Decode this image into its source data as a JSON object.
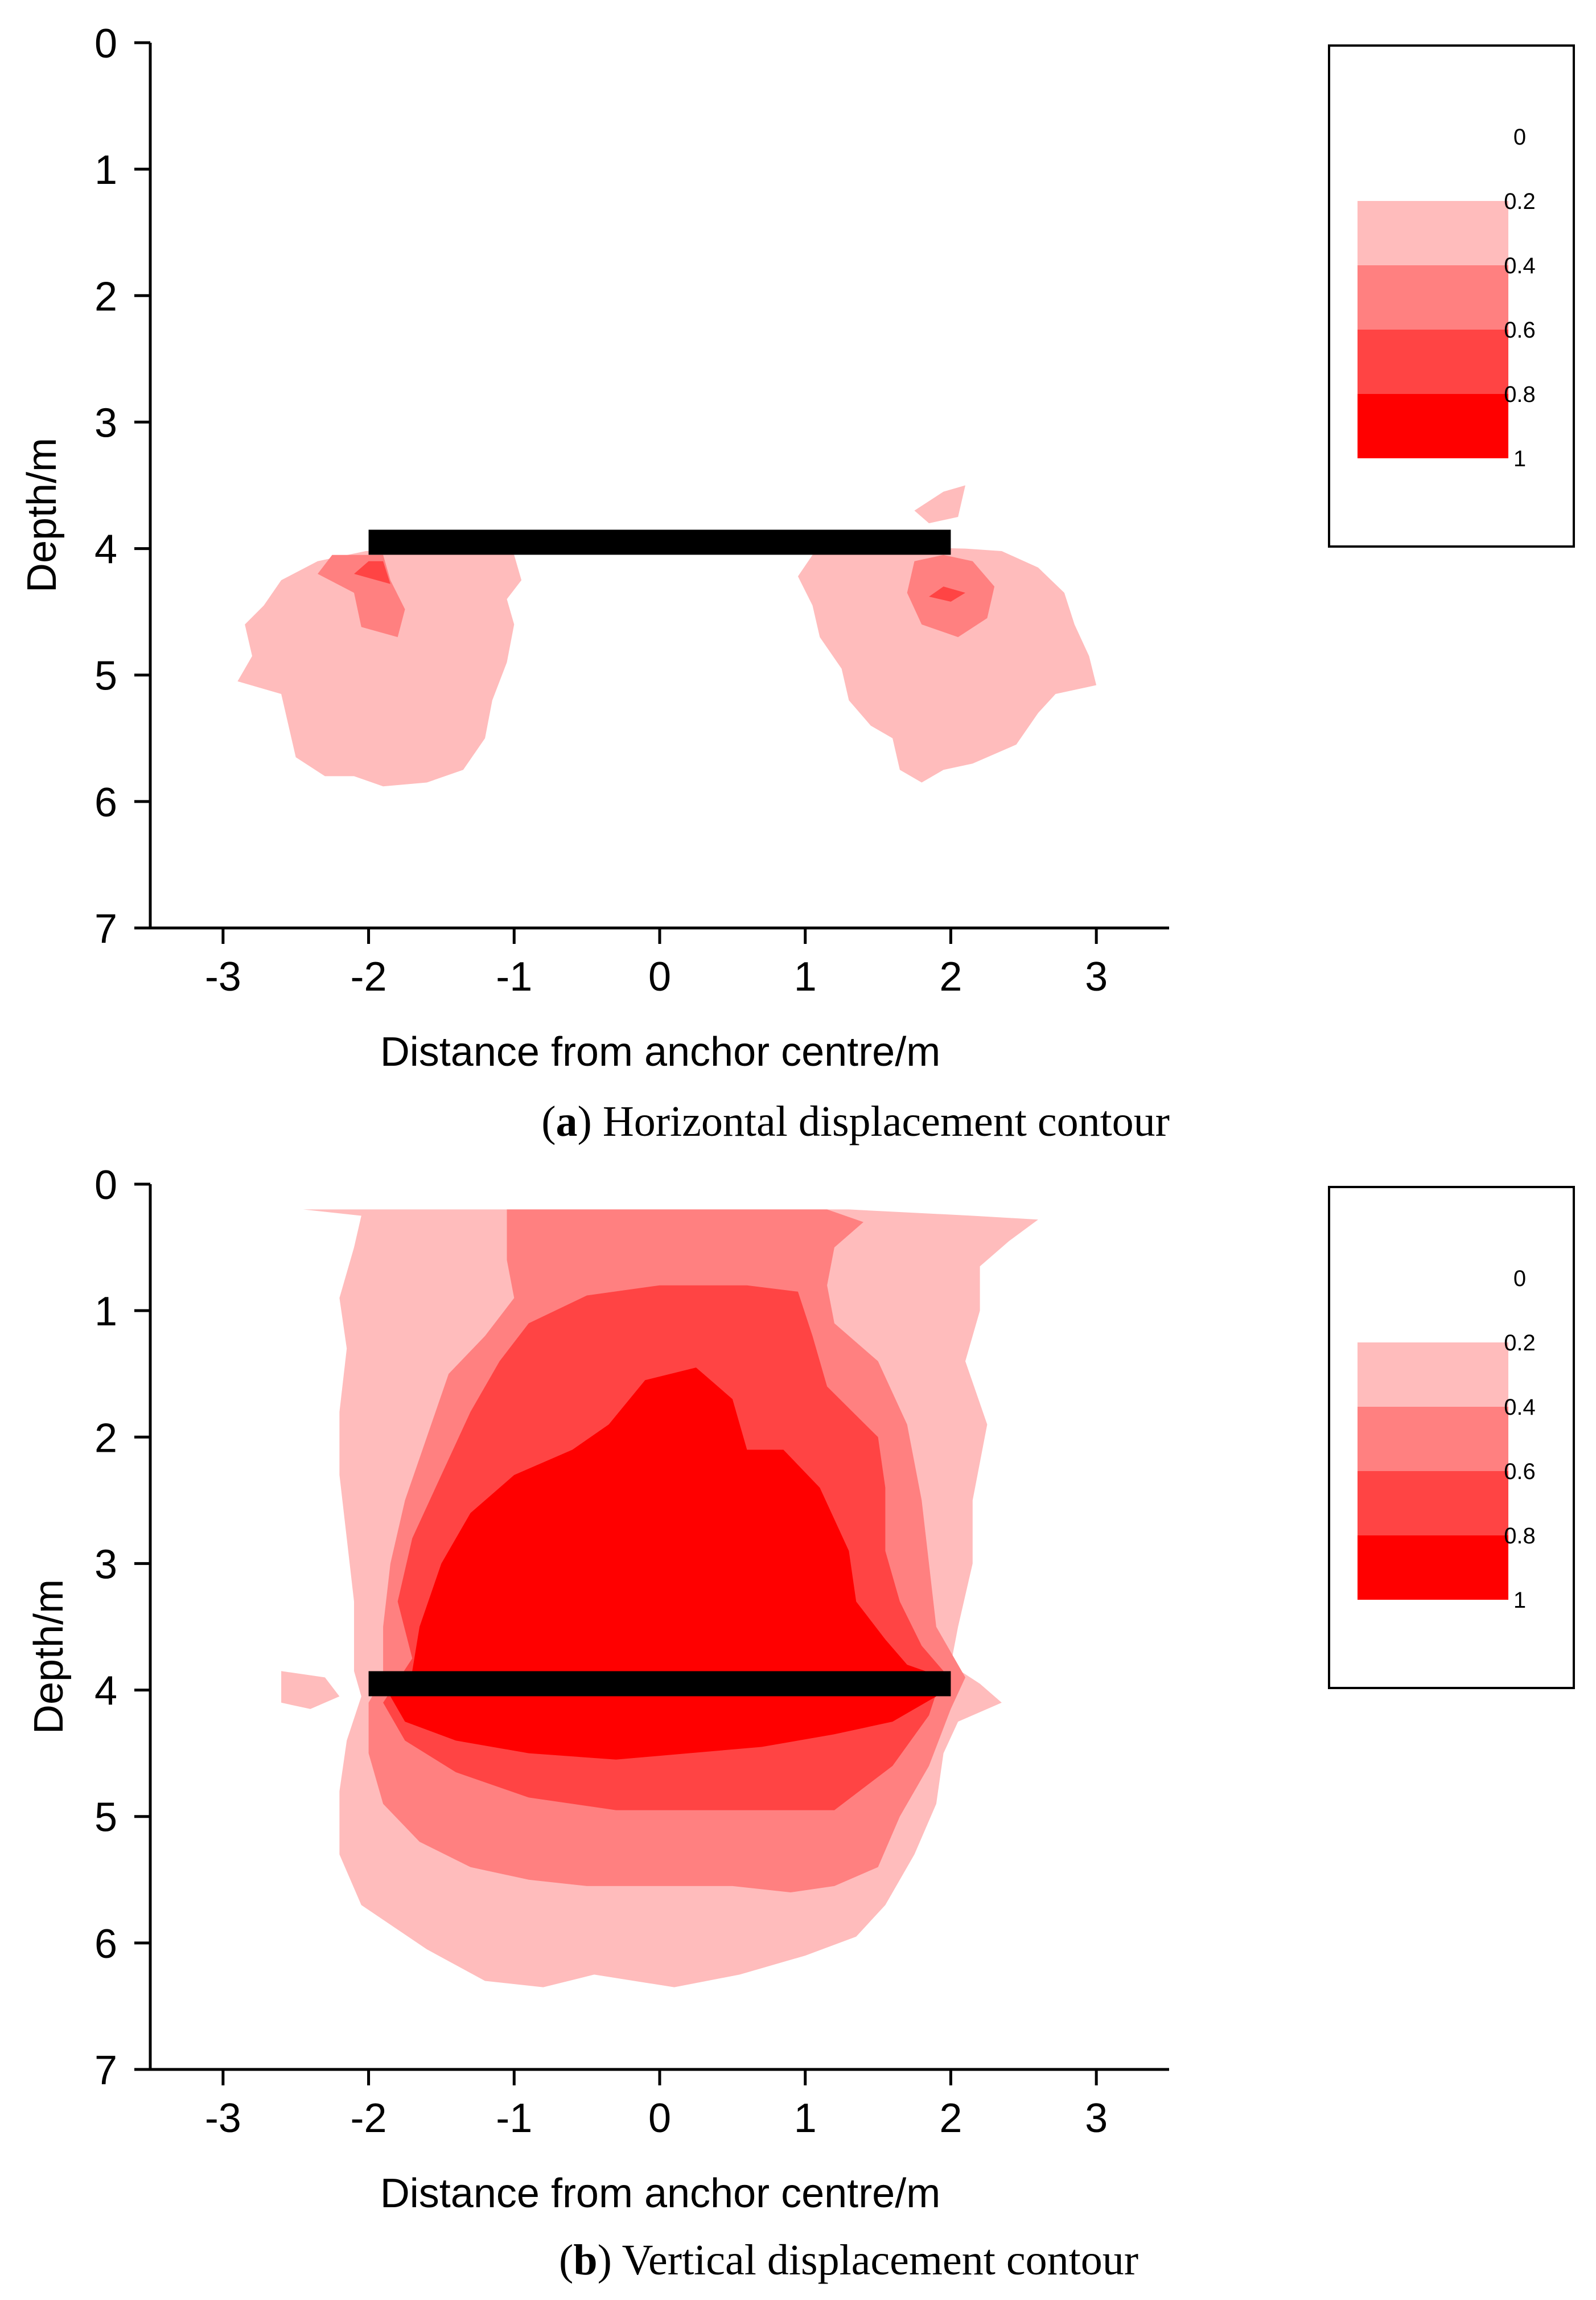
{
  "panels": [
    {
      "id": "a",
      "caption_letter": "a",
      "caption_text": "Horizontal displacement contour",
      "chart_data": {
        "type": "contour",
        "xlabel": "Distance from anchor centre/m",
        "ylabel": "Depth/m",
        "xlim": [
          -3.5,
          3.5
        ],
        "ylim": [
          7,
          0
        ],
        "x_ticks": [
          -3,
          -2,
          -1,
          0,
          1,
          2,
          3
        ],
        "y_ticks": [
          0,
          1,
          2,
          3,
          4,
          5,
          6,
          7
        ],
        "legend_levels": [
          "0",
          "0.2",
          "0.4",
          "0.6",
          "0.8",
          "1"
        ],
        "level_colors": [
          "#ffffff",
          "#ffbcbc",
          "#ff8080",
          "#ff4444",
          "#ff0000"
        ],
        "anchor": {
          "x_from": -2,
          "x_to": 2,
          "depth": 3.95
        },
        "regions": [
          {
            "level": 1,
            "points": [
              [
                -2.02,
                4.02
              ],
              [
                -2.35,
                4.1
              ],
              [
                -2.6,
                4.25
              ],
              [
                -2.72,
                4.45
              ],
              [
                -2.85,
                4.6
              ],
              [
                -2.8,
                4.85
              ],
              [
                -2.9,
                5.05
              ],
              [
                -2.6,
                5.15
              ],
              [
                -2.55,
                5.4
              ],
              [
                -2.5,
                5.65
              ],
              [
                -2.3,
                5.8
              ],
              [
                -2.1,
                5.8
              ],
              [
                -1.9,
                5.88
              ],
              [
                -1.6,
                5.85
              ],
              [
                -1.35,
                5.75
              ],
              [
                -1.2,
                5.5
              ],
              [
                -1.15,
                5.2
              ],
              [
                -1.05,
                4.9
              ],
              [
                -1.0,
                4.6
              ],
              [
                -1.05,
                4.4
              ],
              [
                -0.95,
                4.25
              ],
              [
                -1.0,
                4.05
              ],
              [
                -1.2,
                3.98
              ]
            ]
          },
          {
            "level": 1,
            "points": [
              [
                1.25,
                3.98
              ],
              [
                1.05,
                4.05
              ],
              [
                0.95,
                4.22
              ],
              [
                1.05,
                4.45
              ],
              [
                1.1,
                4.7
              ],
              [
                1.25,
                4.95
              ],
              [
                1.3,
                5.2
              ],
              [
                1.45,
                5.4
              ],
              [
                1.6,
                5.5
              ],
              [
                1.65,
                5.75
              ],
              [
                1.8,
                5.85
              ],
              [
                1.95,
                5.75
              ],
              [
                2.15,
                5.7
              ],
              [
                2.45,
                5.55
              ],
              [
                2.6,
                5.3
              ],
              [
                2.72,
                5.15
              ],
              [
                3.0,
                5.08
              ],
              [
                2.95,
                4.85
              ],
              [
                2.85,
                4.6
              ],
              [
                2.78,
                4.35
              ],
              [
                2.6,
                4.15
              ],
              [
                2.35,
                4.02
              ],
              [
                2.1,
                4.0
              ]
            ]
          },
          {
            "level": 1,
            "points": [
              [
                1.75,
                3.7
              ],
              [
                1.95,
                3.55
              ],
              [
                2.1,
                3.5
              ],
              [
                2.05,
                3.75
              ],
              [
                1.85,
                3.8
              ]
            ]
          },
          {
            "level": 2,
            "points": [
              [
                -2.25,
                4.05
              ],
              [
                -2.35,
                4.2
              ],
              [
                -2.1,
                4.35
              ],
              [
                -2.05,
                4.62
              ],
              [
                -1.8,
                4.7
              ],
              [
                -1.75,
                4.48
              ],
              [
                -1.85,
                4.25
              ],
              [
                -1.9,
                4.05
              ]
            ]
          },
          {
            "level": 2,
            "points": [
              [
                1.75,
                4.1
              ],
              [
                1.7,
                4.35
              ],
              [
                1.8,
                4.6
              ],
              [
                2.05,
                4.7
              ],
              [
                2.25,
                4.55
              ],
              [
                2.3,
                4.3
              ],
              [
                2.15,
                4.1
              ],
              [
                1.95,
                4.05
              ]
            ]
          },
          {
            "level": 3,
            "points": [
              [
                -2.0,
                4.1
              ],
              [
                -2.1,
                4.2
              ],
              [
                -1.85,
                4.28
              ],
              [
                -1.9,
                4.1
              ]
            ]
          },
          {
            "level": 3,
            "points": [
              [
                1.95,
                4.3
              ],
              [
                1.85,
                4.38
              ],
              [
                2.0,
                4.42
              ],
              [
                2.1,
                4.35
              ]
            ]
          }
        ]
      }
    },
    {
      "id": "b",
      "caption_letter": "b",
      "caption_text": "Vertical displacement contour",
      "chart_data": {
        "type": "contour",
        "xlabel": "Distance from anchor centre/m",
        "ylabel": "Depth/m",
        "xlim": [
          -3.5,
          3.5
        ],
        "ylim": [
          7,
          0
        ],
        "x_ticks": [
          -3,
          -2,
          -1,
          0,
          1,
          2,
          3
        ],
        "y_ticks": [
          0,
          1,
          2,
          3,
          4,
          5,
          6,
          7
        ],
        "legend_levels": [
          "0",
          "0.2",
          "0.4",
          "0.6",
          "0.8",
          "1"
        ],
        "level_colors": [
          "#ffffff",
          "#ffbcbc",
          "#ff8080",
          "#ff4444",
          "#ff0000"
        ],
        "anchor": {
          "x_from": -2,
          "x_to": 2,
          "depth": 3.95
        },
        "regions": [
          {
            "level": 1,
            "points": [
              [
                -2.45,
                0.2
              ],
              [
                -1.3,
                0.2
              ],
              [
                1.3,
                0.2
              ],
              [
                2.15,
                0.25
              ],
              [
                2.6,
                0.28
              ],
              [
                2.4,
                0.45
              ],
              [
                2.2,
                0.65
              ],
              [
                2.2,
                1.0
              ],
              [
                2.1,
                1.4
              ],
              [
                2.25,
                1.9
              ],
              [
                2.15,
                2.5
              ],
              [
                2.15,
                3.0
              ],
              [
                2.05,
                3.5
              ],
              [
                2.0,
                3.8
              ],
              [
                2.2,
                3.95
              ],
              [
                2.35,
                4.1
              ],
              [
                2.05,
                4.25
              ],
              [
                1.95,
                4.5
              ],
              [
                1.9,
                4.9
              ],
              [
                1.75,
                5.3
              ],
              [
                1.55,
                5.7
              ],
              [
                1.35,
                5.95
              ],
              [
                1.0,
                6.1
              ],
              [
                0.55,
                6.25
              ],
              [
                0.1,
                6.35
              ],
              [
                -0.45,
                6.25
              ],
              [
                -0.8,
                6.35
              ],
              [
                -1.2,
                6.3
              ],
              [
                -1.6,
                6.05
              ],
              [
                -2.05,
                5.7
              ],
              [
                -2.2,
                5.3
              ],
              [
                -2.2,
                4.8
              ],
              [
                -2.15,
                4.4
              ],
              [
                -2.05,
                4.05
              ],
              [
                -2.1,
                3.85
              ],
              [
                -2.1,
                3.3
              ],
              [
                -2.15,
                2.8
              ],
              [
                -2.2,
                2.3
              ],
              [
                -2.2,
                1.8
              ],
              [
                -2.15,
                1.3
              ],
              [
                -2.2,
                0.9
              ],
              [
                -2.1,
                0.5
              ],
              [
                -2.05,
                0.25
              ]
            ]
          },
          {
            "level": 1,
            "points": [
              [
                -2.6,
                3.85
              ],
              [
                -2.3,
                3.9
              ],
              [
                -2.2,
                4.05
              ],
              [
                -2.4,
                4.15
              ],
              [
                -2.6,
                4.1
              ]
            ]
          },
          {
            "level": 2,
            "points": [
              [
                -1.05,
                0.2
              ],
              [
                1.15,
                0.2
              ],
              [
                1.4,
                0.3
              ],
              [
                1.2,
                0.5
              ],
              [
                1.15,
                0.8
              ],
              [
                1.2,
                1.1
              ],
              [
                1.5,
                1.4
              ],
              [
                1.7,
                1.9
              ],
              [
                1.8,
                2.5
              ],
              [
                1.85,
                3.0
              ],
              [
                1.9,
                3.5
              ],
              [
                2.1,
                3.9
              ],
              [
                2.0,
                4.15
              ],
              [
                1.85,
                4.6
              ],
              [
                1.65,
                5.0
              ],
              [
                1.5,
                5.4
              ],
              [
                1.2,
                5.55
              ],
              [
                0.9,
                5.6
              ],
              [
                0.5,
                5.55
              ],
              [
                0.0,
                5.55
              ],
              [
                -0.5,
                5.55
              ],
              [
                -0.9,
                5.5
              ],
              [
                -1.3,
                5.4
              ],
              [
                -1.65,
                5.2
              ],
              [
                -1.9,
                4.9
              ],
              [
                -2.0,
                4.5
              ],
              [
                -2.0,
                4.1
              ],
              [
                -1.9,
                3.9
              ],
              [
                -1.9,
                3.5
              ],
              [
                -1.85,
                3.0
              ],
              [
                -1.75,
                2.5
              ],
              [
                -1.6,
                2.0
              ],
              [
                -1.45,
                1.5
              ],
              [
                -1.2,
                1.2
              ],
              [
                -1.0,
                0.9
              ],
              [
                -1.05,
                0.6
              ],
              [
                -1.05,
                0.3
              ]
            ]
          },
          {
            "level": 3,
            "points": [
              [
                -0.9,
                1.1
              ],
              [
                -0.5,
                0.88
              ],
              [
                0.0,
                0.8
              ],
              [
                0.6,
                0.8
              ],
              [
                0.95,
                0.85
              ],
              [
                1.05,
                1.2
              ],
              [
                1.15,
                1.6
              ],
              [
                1.5,
                2.0
              ],
              [
                1.55,
                2.4
              ],
              [
                1.55,
                2.9
              ],
              [
                1.65,
                3.3
              ],
              [
                1.8,
                3.65
              ],
              [
                1.95,
                3.85
              ],
              [
                1.85,
                4.2
              ],
              [
                1.6,
                4.6
              ],
              [
                1.2,
                4.95
              ],
              [
                0.7,
                4.95
              ],
              [
                0.2,
                4.95
              ],
              [
                -0.3,
                4.95
              ],
              [
                -0.9,
                4.85
              ],
              [
                -1.4,
                4.65
              ],
              [
                -1.75,
                4.4
              ],
              [
                -1.9,
                4.1
              ],
              [
                -1.7,
                3.75
              ],
              [
                -1.8,
                3.3
              ],
              [
                -1.7,
                2.8
              ],
              [
                -1.5,
                2.3
              ],
              [
                -1.3,
                1.8
              ],
              [
                -1.1,
                1.4
              ]
            ]
          },
          {
            "level": 4,
            "points": [
              [
                -0.1,
                1.55
              ],
              [
                0.25,
                1.45
              ],
              [
                0.5,
                1.7
              ],
              [
                0.6,
                2.1
              ],
              [
                0.85,
                2.1
              ],
              [
                1.1,
                2.4
              ],
              [
                1.3,
                2.9
              ],
              [
                1.35,
                3.3
              ],
              [
                1.55,
                3.6
              ],
              [
                1.7,
                3.8
              ],
              [
                1.95,
                3.9
              ],
              [
                1.9,
                4.05
              ],
              [
                1.6,
                4.25
              ],
              [
                1.2,
                4.35
              ],
              [
                0.7,
                4.45
              ],
              [
                0.2,
                4.5
              ],
              [
                -0.3,
                4.55
              ],
              [
                -0.9,
                4.5
              ],
              [
                -1.4,
                4.4
              ],
              [
                -1.75,
                4.25
              ],
              [
                -1.85,
                4.05
              ],
              [
                -1.7,
                3.85
              ],
              [
                -1.65,
                3.5
              ],
              [
                -1.5,
                3.0
              ],
              [
                -1.3,
                2.6
              ],
              [
                -1.0,
                2.3
              ],
              [
                -0.6,
                2.1
              ],
              [
                -0.35,
                1.9
              ]
            ]
          }
        ]
      }
    }
  ]
}
